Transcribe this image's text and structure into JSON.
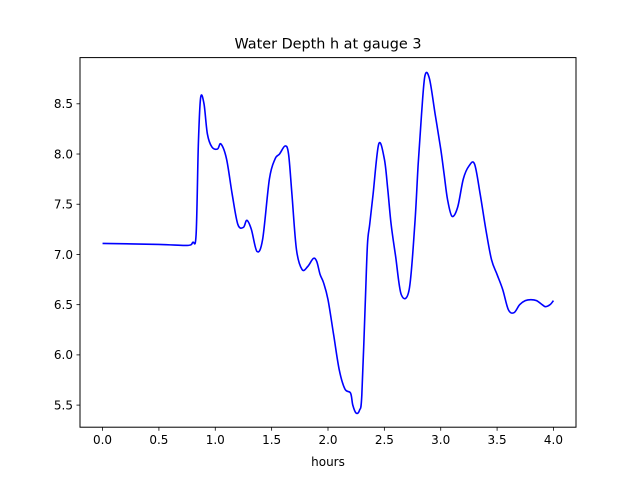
{
  "chart_data": {
    "type": "line",
    "title": "Water Depth h at gauge 3",
    "xlabel": "hours",
    "ylabel": "",
    "xlim": [
      -0.2,
      4.2
    ],
    "ylim": [
      5.28,
      8.96
    ],
    "grid": false,
    "legend": "none",
    "x_ticks": [
      0.0,
      0.5,
      1.0,
      1.5,
      2.0,
      2.5,
      3.0,
      3.5,
      4.0
    ],
    "x_tick_labels": [
      "0.0",
      "0.5",
      "1.0",
      "1.5",
      "2.0",
      "2.5",
      "3.0",
      "3.5",
      "4.0"
    ],
    "y_ticks": [
      5.5,
      6.0,
      6.5,
      7.0,
      7.5,
      8.0,
      8.5
    ],
    "y_tick_labels": [
      "5.5",
      "6.0",
      "6.5",
      "7.0",
      "7.5",
      "8.0",
      "8.5"
    ],
    "series": [
      {
        "color": "#0000ff",
        "x": [
          0.0,
          0.5,
          0.75,
          0.8,
          0.83,
          0.85,
          0.87,
          0.9,
          0.93,
          0.97,
          1.02,
          1.05,
          1.1,
          1.15,
          1.2,
          1.25,
          1.28,
          1.32,
          1.37,
          1.42,
          1.48,
          1.53,
          1.57,
          1.62,
          1.65,
          1.68,
          1.72,
          1.77,
          1.82,
          1.87,
          1.9,
          1.93,
          1.96,
          2.0,
          2.05,
          2.1,
          2.15,
          2.2,
          2.22,
          2.25,
          2.28,
          2.3,
          2.33,
          2.35,
          2.37,
          2.4,
          2.45,
          2.5,
          2.53,
          2.56,
          2.6,
          2.65,
          2.72,
          2.77,
          2.8,
          2.83,
          2.86,
          2.9,
          2.95,
          3.0,
          3.03,
          3.06,
          3.1,
          3.15,
          3.2,
          3.25,
          3.3,
          3.35,
          3.4,
          3.45,
          3.5,
          3.55,
          3.6,
          3.65,
          3.7,
          3.75,
          3.8,
          3.85,
          3.9,
          3.93,
          3.97,
          4.0
        ],
        "y": [
          7.11,
          7.1,
          7.09,
          7.12,
          7.2,
          8.1,
          8.56,
          8.5,
          8.2,
          8.07,
          8.05,
          8.1,
          7.95,
          7.6,
          7.3,
          7.27,
          7.34,
          7.25,
          7.03,
          7.15,
          7.75,
          7.95,
          8.0,
          8.08,
          8.0,
          7.6,
          7.05,
          6.85,
          6.88,
          6.96,
          6.93,
          6.8,
          6.72,
          6.55,
          6.2,
          5.85,
          5.66,
          5.62,
          5.5,
          5.42,
          5.45,
          5.6,
          6.5,
          7.1,
          7.3,
          7.6,
          8.1,
          7.95,
          7.65,
          7.3,
          6.98,
          6.6,
          6.65,
          7.3,
          7.9,
          8.4,
          8.78,
          8.75,
          8.4,
          8.05,
          7.8,
          7.55,
          7.38,
          7.47,
          7.75,
          7.88,
          7.9,
          7.6,
          7.25,
          6.95,
          6.8,
          6.65,
          6.45,
          6.42,
          6.5,
          6.54,
          6.55,
          6.54,
          6.5,
          6.48,
          6.5,
          6.54
        ]
      }
    ]
  }
}
